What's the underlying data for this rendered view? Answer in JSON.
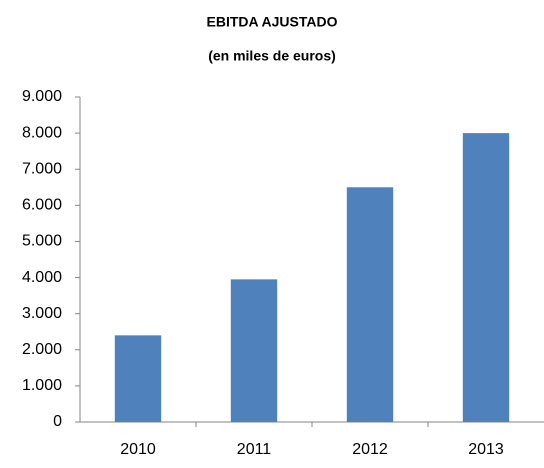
{
  "chart_data": {
    "type": "bar",
    "title": "EBITDA AJUSTADO",
    "subtitle": "(en miles de euros)",
    "categories": [
      "2010",
      "2011",
      "2012",
      "2013"
    ],
    "values": [
      2400,
      3950,
      6500,
      8000
    ],
    "color": "#4f81bd",
    "ylim": [
      0,
      9000
    ],
    "yticks": [
      0,
      {
        "value": 1000,
        "label": "1.000"
      },
      {
        "value": 2000,
        "label": "2.000"
      },
      {
        "value": 3000,
        "label": "3.000"
      },
      {
        "value": 4000,
        "label": "4.000"
      },
      {
        "value": 5000,
        "label": "5.000"
      },
      {
        "value": 6000,
        "label": "6.000"
      },
      {
        "value": 7000,
        "label": "7.000"
      },
      {
        "value": 8000,
        "label": "8.000"
      },
      {
        "value": 9000,
        "label": "9.000"
      }
    ],
    "grid": false
  }
}
